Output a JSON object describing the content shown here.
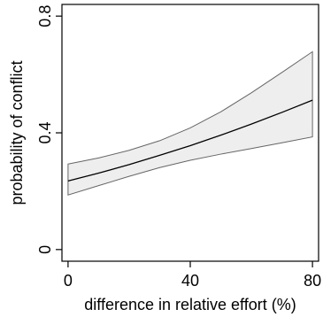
{
  "chart_data": {
    "type": "area",
    "title": "",
    "xlabel": "difference in relative effort (%)",
    "ylabel": "probability of conflict",
    "xlim": [
      -2,
      82
    ],
    "ylim": [
      -0.04,
      0.84
    ],
    "x_ticks": [
      0,
      40,
      80
    ],
    "y_ticks": [
      0,
      0.4,
      0.8
    ],
    "x_tick_labels": [
      "0",
      "40",
      "80"
    ],
    "y_tick_labels": [
      "0",
      "0.4",
      "0.8"
    ],
    "grid": false,
    "series": [
      {
        "x": [
          0,
          10,
          20,
          30,
          40,
          50,
          60,
          70,
          80
        ],
        "values": [
          0.235,
          0.262,
          0.291,
          0.323,
          0.356,
          0.392,
          0.43,
          0.47,
          0.512
        ],
        "lower": [
          0.187,
          0.219,
          0.251,
          0.281,
          0.306,
          0.327,
          0.346,
          0.366,
          0.386
        ],
        "upper": [
          0.293,
          0.314,
          0.34,
          0.373,
          0.417,
          0.472,
          0.537,
          0.607,
          0.678
        ]
      }
    ],
    "colors": {
      "band_fill": "#eeeeee",
      "band_stroke": "#666666",
      "line": "#000000",
      "axis": "#000000"
    }
  }
}
